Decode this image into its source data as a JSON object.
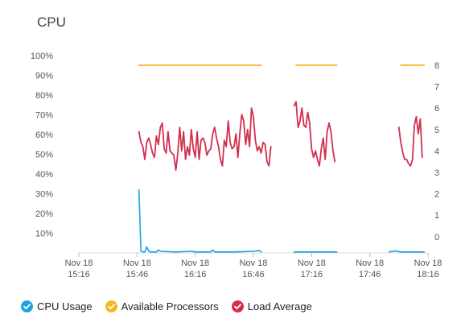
{
  "title": "CPU",
  "legend": [
    {
      "label": "CPU Usage",
      "color": "#1ba3e0",
      "icon": "check-circle-icon"
    },
    {
      "label": "Available Processors",
      "color": "#f5b820",
      "icon": "check-circle-icon"
    },
    {
      "label": "Load Average",
      "color": "#d22f4c",
      "icon": "check-circle-icon"
    }
  ],
  "chart_data": {
    "type": "line",
    "title": "CPU",
    "x_ticks": [
      {
        "line1": "Nov 18",
        "line2": "15:16",
        "minutes": 0
      },
      {
        "line1": "Nov 18",
        "line2": "15:46",
        "minutes": 30
      },
      {
        "line1": "Nov 18",
        "line2": "16:16",
        "minutes": 60
      },
      {
        "line1": "Nov 18",
        "line2": "16:46",
        "minutes": 90
      },
      {
        "line1": "Nov 18",
        "line2": "17:16",
        "minutes": 120
      },
      {
        "line1": "Nov 18",
        "line2": "17:46",
        "minutes": 150
      },
      {
        "line1": "Nov 18",
        "line2": "18:16",
        "minutes": 180
      }
    ],
    "x_unit": "minutes after Nov 18 15:16",
    "xlim": [
      0,
      180
    ],
    "y_left": {
      "ticks": [
        "10%",
        "20%",
        "30%",
        "40%",
        "50%",
        "60%",
        "70%",
        "80%",
        "90%",
        "100%"
      ],
      "ylim": [
        0,
        100
      ]
    },
    "y_right": {
      "ticks": [
        "0",
        "1",
        "2",
        "3",
        "4",
        "5",
        "6",
        "7",
        "8"
      ],
      "ylim": [
        -0.8,
        8.4
      ]
    },
    "grid": false,
    "legend_position": "bottom",
    "series": [
      {
        "name": "Available Processors",
        "axis": "right",
        "color": "#f5b820",
        "segments": [
          [
            [
              31,
              8
            ],
            [
              94,
              8
            ]
          ],
          [
            [
              112,
              8
            ],
            [
              133,
              8
            ]
          ],
          [
            [
              166,
              8
            ],
            [
              178,
              8
            ]
          ]
        ]
      },
      {
        "name": "Load Average",
        "axis": "right",
        "color": "#d22f4c",
        "segments": [
          [
            [
              31,
              4.9
            ],
            [
              32,
              4.4
            ],
            [
              33,
              4.2
            ],
            [
              34,
              3.6
            ],
            [
              35,
              4.4
            ],
            [
              36,
              4.6
            ],
            [
              37,
              4.3
            ],
            [
              38,
              3.9
            ],
            [
              39,
              3.7
            ],
            [
              40,
              4.7
            ],
            [
              41,
              4.3
            ],
            [
              42,
              5.1
            ],
            [
              43,
              5.3
            ],
            [
              44,
              4.1
            ],
            [
              45,
              3.9
            ],
            [
              46,
              4.9
            ],
            [
              47,
              4.0
            ],
            [
              48,
              3.9
            ],
            [
              49,
              3.8
            ],
            [
              50,
              3.1
            ],
            [
              51,
              3.9
            ],
            [
              52,
              5.1
            ],
            [
              53,
              4.0
            ],
            [
              54,
              4.9
            ],
            [
              55,
              3.6
            ],
            [
              56,
              4.2
            ],
            [
              57,
              3.8
            ],
            [
              58,
              5.0
            ],
            [
              59,
              4.1
            ],
            [
              60,
              3.7
            ],
            [
              61,
              4.9
            ],
            [
              62,
              3.6
            ],
            [
              63,
              4.5
            ],
            [
              64,
              4.6
            ],
            [
              65,
              4.4
            ],
            [
              66,
              3.8
            ],
            [
              67,
              4.0
            ],
            [
              68,
              4.1
            ],
            [
              69,
              4.8
            ],
            [
              70,
              5.1
            ],
            [
              71,
              4.6
            ],
            [
              72,
              4.2
            ],
            [
              73,
              3.6
            ],
            [
              74,
              3.3
            ],
            [
              75,
              4.5
            ],
            [
              76,
              4.2
            ],
            [
              77,
              5.4
            ],
            [
              78,
              4.4
            ],
            [
              79,
              4.1
            ],
            [
              80,
              4.2
            ],
            [
              81,
              4.8
            ],
            [
              82,
              3.7
            ],
            [
              83,
              4.8
            ],
            [
              84,
              5.7
            ],
            [
              85,
              5.4
            ],
            [
              86,
              4.3
            ],
            [
              87,
              5.0
            ],
            [
              88,
              4.2
            ],
            [
              89,
              6.0
            ],
            [
              90,
              5.6
            ],
            [
              91,
              4.5
            ],
            [
              92,
              4.0
            ],
            [
              93,
              4.2
            ],
            [
              94,
              3.9
            ],
            [
              95,
              4.4
            ],
            [
              96,
              4.3
            ],
            [
              97,
              3.5
            ],
            [
              98,
              3.3
            ],
            [
              99,
              4.2
            ]
          ],
          [
            [
              111,
              6.1
            ],
            [
              112,
              6.3
            ],
            [
              113,
              5.1
            ],
            [
              114,
              5.4
            ],
            [
              115,
              6.0
            ],
            [
              116,
              5.2
            ],
            [
              117,
              5.1
            ],
            [
              118,
              5.8
            ],
            [
              119,
              5.3
            ],
            [
              120,
              4.1
            ],
            [
              121,
              3.7
            ],
            [
              122,
              4.0
            ],
            [
              123,
              3.6
            ],
            [
              124,
              3.3
            ],
            [
              125,
              4.1
            ],
            [
              126,
              4.6
            ],
            [
              127,
              3.6
            ],
            [
              128,
              4.9
            ],
            [
              129,
              5.3
            ],
            [
              130,
              4.9
            ],
            [
              131,
              4.0
            ],
            [
              132,
              3.5
            ]
          ],
          [
            [
              165,
              5.1
            ],
            [
              166,
              4.4
            ],
            [
              167,
              3.9
            ],
            [
              168,
              3.6
            ],
            [
              169,
              3.6
            ],
            [
              170,
              3.4
            ],
            [
              171,
              3.3
            ],
            [
              172,
              3.6
            ],
            [
              173,
              5.2
            ],
            [
              174,
              5.6
            ],
            [
              175,
              4.8
            ],
            [
              176,
              5.5
            ],
            [
              177,
              3.7
            ]
          ]
        ]
      },
      {
        "name": "CPU Usage",
        "axis": "left",
        "color": "#1ba3e0",
        "segments": [
          [
            [
              31,
              32
            ],
            [
              32,
              1
            ],
            [
              33,
              0.5
            ],
            [
              34,
              0.5
            ],
            [
              35,
              3
            ],
            [
              36,
              1
            ],
            [
              37,
              0.5
            ],
            [
              40,
              0.5
            ],
            [
              41,
              1.5
            ],
            [
              42,
              0.8
            ],
            [
              50,
              0.5
            ],
            [
              58,
              0.8
            ],
            [
              60,
              0.5
            ],
            [
              68,
              0.5
            ],
            [
              69,
              1.5
            ],
            [
              70,
              0.5
            ],
            [
              80,
              0.5
            ],
            [
              90,
              0.8
            ],
            [
              93,
              1.2
            ],
            [
              94,
              0.5
            ]
          ],
          [
            [
              111,
              0.5
            ],
            [
              133,
              0.5
            ]
          ],
          [
            [
              160,
              0.5
            ],
            [
              163,
              1
            ],
            [
              166,
              0.5
            ],
            [
              178,
              0.5
            ]
          ]
        ]
      }
    ]
  }
}
